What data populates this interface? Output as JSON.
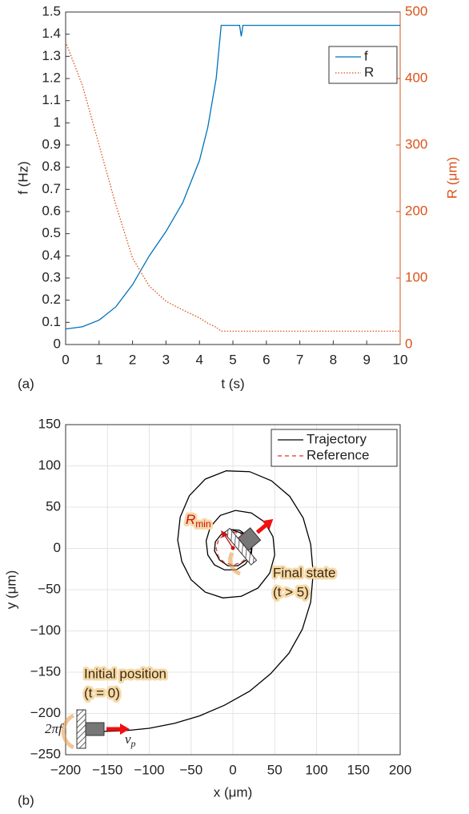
{
  "chart_data": [
    {
      "type": "line",
      "panel_label": "(a)",
      "xlabel": "t (s)",
      "ylabel": "f (Hz)",
      "y2label": "R (μm)",
      "x": [
        0,
        0.5,
        1,
        1.5,
        2,
        2.5,
        3,
        3.5,
        4,
        4.25,
        4.5,
        4.65,
        5,
        5.2,
        5.25,
        5.3,
        6,
        10
      ],
      "series": [
        {
          "name": "f",
          "color": "#0072bd",
          "linestyle": "solid",
          "values": [
            0.07,
            0.08,
            0.11,
            0.17,
            0.27,
            0.4,
            0.51,
            0.64,
            0.83,
            0.98,
            1.2,
            1.44,
            1.44,
            1.44,
            1.39,
            1.44,
            1.44,
            1.44
          ]
        },
        {
          "name": "R",
          "color": "#d95319",
          "linestyle": "dotted",
          "axis": "y2",
          "values": [
            455,
            390,
            300,
            210,
            130,
            88,
            65,
            52,
            40,
            32,
            26,
            20,
            20,
            20,
            20,
            20,
            20,
            20
          ]
        }
      ],
      "xlim": [
        0,
        10
      ],
      "xticks": [
        0,
        1,
        2,
        3,
        4,
        5,
        6,
        7,
        8,
        9,
        10
      ],
      "ylim": [
        0,
        1.5
      ],
      "yticks": [
        0,
        0.1,
        0.2,
        0.3,
        0.4,
        0.5,
        0.6,
        0.7,
        0.8,
        0.9,
        1,
        1.1,
        1.2,
        1.3,
        1.4,
        1.5
      ],
      "y2lim": [
        0,
        500
      ],
      "y2ticks": [
        0,
        100,
        200,
        300,
        400,
        500
      ],
      "grid": false,
      "legend": "upper right"
    },
    {
      "type": "line",
      "panel_label": "(b)",
      "xlabel": "x (μm)",
      "ylabel": "y (μm)",
      "series": [
        {
          "name": "Trajectory",
          "color": "#000000",
          "linestyle": "solid",
          "x": [
            -165,
            -130,
            -100,
            -70,
            -40,
            -10,
            20,
            45,
            67,
            83,
            93,
            96,
            93,
            84,
            68,
            46,
            20,
            -8,
            -33,
            -52,
            -63,
            -66,
            -61,
            -50,
            -33,
            -12,
            10,
            30,
            44,
            50,
            48,
            38,
            22,
            3,
            -15,
            -27,
            -32,
            -30,
            -22,
            -10,
            4,
            15,
            22,
            23,
            18,
            8,
            -4,
            -14,
            -21,
            -22,
            -16,
            -6,
            6,
            16,
            22,
            20,
            12,
            0
          ],
          "values": [
            -222,
            -221,
            -218,
            -212,
            -203,
            -190,
            -173,
            -152,
            -127,
            -98,
            -65,
            -30,
            5,
            37,
            63,
            82,
            93,
            94,
            84,
            64,
            38,
            10,
            -16,
            -38,
            -53,
            -60,
            -58,
            -48,
            -30,
            -8,
            14,
            32,
            43,
            46,
            40,
            26,
            9,
            -8,
            -20,
            -26,
            -26,
            -19,
            -8,
            4,
            15,
            22,
            23,
            17,
            8,
            -3,
            -14,
            -21,
            -21,
            -14,
            -3,
            9,
            18,
            22
          ]
        },
        {
          "name": "Reference",
          "color": "#e8302a",
          "linestyle": "dashed",
          "x": [
            20,
            17.3,
            10,
            0,
            -10,
            -17.3,
            -20,
            -17.3,
            -10,
            0,
            10,
            17.3,
            20
          ],
          "values": [
            0,
            10,
            17.3,
            20,
            17.3,
            10,
            0,
            -10,
            -17.3,
            -20,
            -17.3,
            -10,
            0
          ]
        }
      ],
      "xlim": [
        -200,
        200
      ],
      "xticks": [
        {
          "value": -200,
          "label": "−200"
        },
        {
          "value": -150,
          "label": "−150"
        },
        {
          "value": -100,
          "label": "−100"
        },
        {
          "value": -50,
          "label": "−50"
        },
        0,
        50,
        100,
        150,
        200
      ],
      "ylim": [
        -250,
        150
      ],
      "yticks": [
        {
          "value": -250,
          "label": "−250"
        },
        {
          "value": -200,
          "label": "−200"
        },
        {
          "value": -150,
          "label": "−150"
        },
        {
          "value": -100,
          "label": "−100"
        },
        {
          "value": -50,
          "label": "−50"
        },
        0,
        50,
        100,
        150
      ],
      "grid": true,
      "legend": "upper right",
      "annotations": [
        "Initial position",
        "(t = 0)",
        "Final state",
        "(t > 5)",
        "R",
        "min",
        "2πf",
        "v",
        "p"
      ]
    }
  ]
}
